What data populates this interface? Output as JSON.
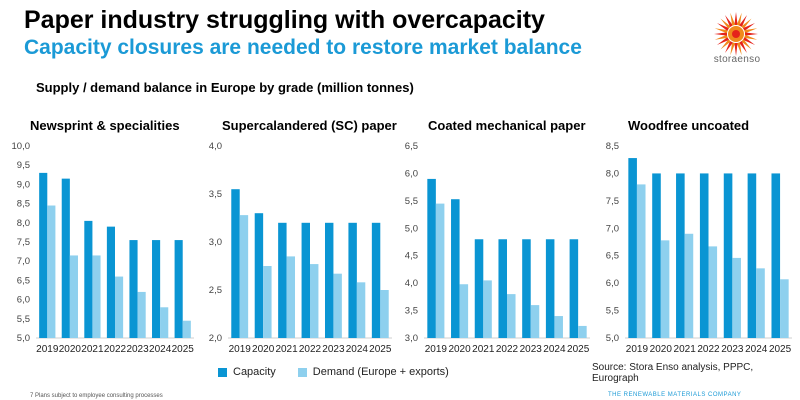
{
  "title": "Paper industry struggling with overcapacity",
  "subtitle": "Capacity closures are needed to restore market balance",
  "chart_heading": "Supply / demand balance in Europe by grade (million tonnes)",
  "logo": {
    "text": "storaenso",
    "icon": "stora-enso-sun-logo"
  },
  "legend": [
    "Capacity",
    "Demand (Europe + exports)"
  ],
  "source": "Source: Stora Enso analysis, PPPC, Eurograph",
  "footnote": "7    Plans subject to employee consulting processes",
  "tagline": "THE RENEWABLE MATERIALS COMPANY",
  "colors": {
    "capacity": "#0a95d3",
    "demand": "#8ed0ee",
    "subtitle": "#1b9ad6"
  },
  "chart_data": [
    {
      "type": "bar",
      "title": "Newsprint & specialities",
      "categories": [
        "2019",
        "2020",
        "2021",
        "2022",
        "2023",
        "2024",
        "2025"
      ],
      "series": [
        {
          "name": "Capacity",
          "values": [
            9.3,
            9.15,
            8.05,
            7.9,
            7.55,
            7.55,
            7.55
          ]
        },
        {
          "name": "Demand (Europe + exports)",
          "values": [
            8.45,
            7.15,
            7.15,
            6.6,
            6.2,
            5.8,
            5.45
          ]
        }
      ],
      "ylim": [
        5.0,
        10.0
      ],
      "yticks": [
        "10,0",
        "9,5",
        "9,0",
        "8,5",
        "8,0",
        "7,5",
        "7,0",
        "6,5",
        "6,0",
        "5,5",
        "5,0"
      ]
    },
    {
      "type": "bar",
      "title": "Supercalandered (SC) paper",
      "categories": [
        "2019",
        "2020",
        "2021",
        "2022",
        "2023",
        "2024",
        "2025"
      ],
      "series": [
        {
          "name": "Capacity",
          "values": [
            3.55,
            3.3,
            3.2,
            3.2,
            3.2,
            3.2,
            3.2
          ]
        },
        {
          "name": "Demand (Europe + exports)",
          "values": [
            3.28,
            2.75,
            2.85,
            2.77,
            2.67,
            2.58,
            2.5
          ]
        }
      ],
      "ylim": [
        2.0,
        4.0
      ],
      "yticks": [
        "4,0",
        "3,5",
        "3,0",
        "2,5",
        "2,0"
      ]
    },
    {
      "type": "bar",
      "title": "Coated mechanical paper",
      "categories": [
        "2019",
        "2020",
        "2021",
        "2022",
        "2023",
        "2024",
        "2025"
      ],
      "series": [
        {
          "name": "Capacity",
          "values": [
            5.9,
            5.53,
            4.8,
            4.8,
            4.8,
            4.8,
            4.8
          ]
        },
        {
          "name": "Demand (Europe + exports)",
          "values": [
            5.45,
            3.98,
            4.05,
            3.8,
            3.6,
            3.4,
            3.22
          ]
        }
      ],
      "ylim": [
        3.0,
        6.5
      ],
      "yticks": [
        "6,5",
        "6,0",
        "5,5",
        "5,0",
        "4,5",
        "4,0",
        "3,5",
        "3,0"
      ]
    },
    {
      "type": "bar",
      "title": "Woodfree uncoated",
      "categories": [
        "2019",
        "2020",
        "2021",
        "2022",
        "2023",
        "2024",
        "2025"
      ],
      "series": [
        {
          "name": "Capacity",
          "values": [
            8.28,
            8.0,
            8.0,
            8.0,
            8.0,
            8.0,
            8.0
          ]
        },
        {
          "name": "Demand (Europe + exports)",
          "values": [
            7.8,
            6.78,
            6.9,
            6.67,
            6.46,
            6.27,
            6.07
          ]
        }
      ],
      "ylim": [
        5.0,
        8.5
      ],
      "yticks": [
        "8,5",
        "8,0",
        "7,5",
        "7,0",
        "6,5",
        "6,0",
        "5,5",
        "5,0"
      ]
    }
  ]
}
